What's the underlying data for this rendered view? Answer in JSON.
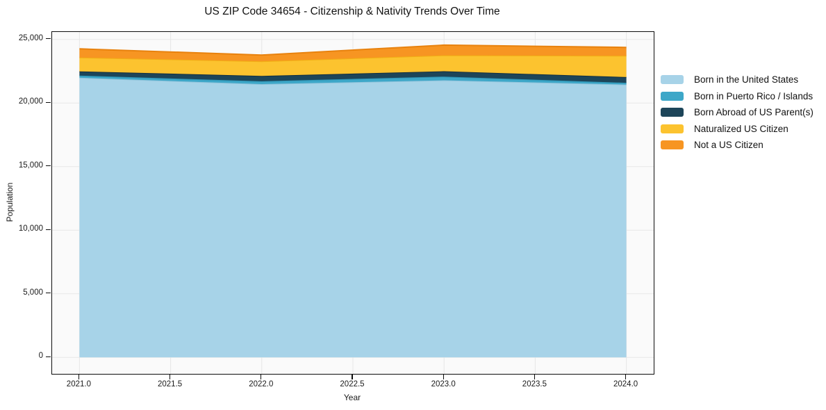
{
  "chart": {
    "title": "US ZIP Code 34654 - Citizenship & Nativity Trends Over Time",
    "xlabel": "Year",
    "ylabel": "Population"
  },
  "axes": {
    "x": {
      "tick_labels": [
        "2021.0",
        "2021.5",
        "2022.0",
        "2022.5",
        "2023.0",
        "2023.5",
        "2024.0"
      ],
      "tick_values": [
        2021.0,
        2021.5,
        2022.0,
        2022.5,
        2023.0,
        2023.5,
        2024.0
      ]
    },
    "y": {
      "tick_labels": [
        "0",
        "5,000",
        "10,000",
        "15,000",
        "20,000",
        "25,000"
      ],
      "tick_values": [
        0,
        5000,
        10000,
        15000,
        20000,
        25000
      ]
    }
  },
  "chart_data": {
    "type": "area",
    "stacked": true,
    "title": "US ZIP Code 34654 - Citizenship & Nativity Trends Over Time",
    "xlabel": "Year",
    "ylabel": "Population",
    "x": [
      2021,
      2022,
      2023,
      2024
    ],
    "series": [
      {
        "name": "Born in the United States",
        "values": [
          21990,
          21490,
          21790,
          21450
        ],
        "color": "#a7d3e8",
        "edge": "#8ec2da"
      },
      {
        "name": "Born in Puerto Rico / Islands",
        "values": [
          170,
          220,
          290,
          140
        ],
        "color": "#3da7c8",
        "edge": "#2d92b2"
      },
      {
        "name": "Born Abroad of US Parent(s)",
        "values": [
          330,
          420,
          420,
          450
        ],
        "color": "#1d4559",
        "edge": "#132f40"
      },
      {
        "name": "Naturalized US Citizen",
        "values": [
          1090,
          1150,
          1250,
          1670
        ],
        "color": "#fcc32f",
        "edge": "#f1ae15"
      },
      {
        "name": "Not a US Citizen",
        "values": [
          680,
          490,
          800,
          660
        ],
        "color": "#f79522",
        "edge": "#e8820e"
      }
    ],
    "totals": [
      24260,
      23770,
      24550,
      24370
    ],
    "xlim": [
      2020.85,
      2024.15
    ],
    "ylim": [
      -1292,
      25585
    ],
    "grid": true,
    "legend_position": "right of plot, no frame"
  }
}
